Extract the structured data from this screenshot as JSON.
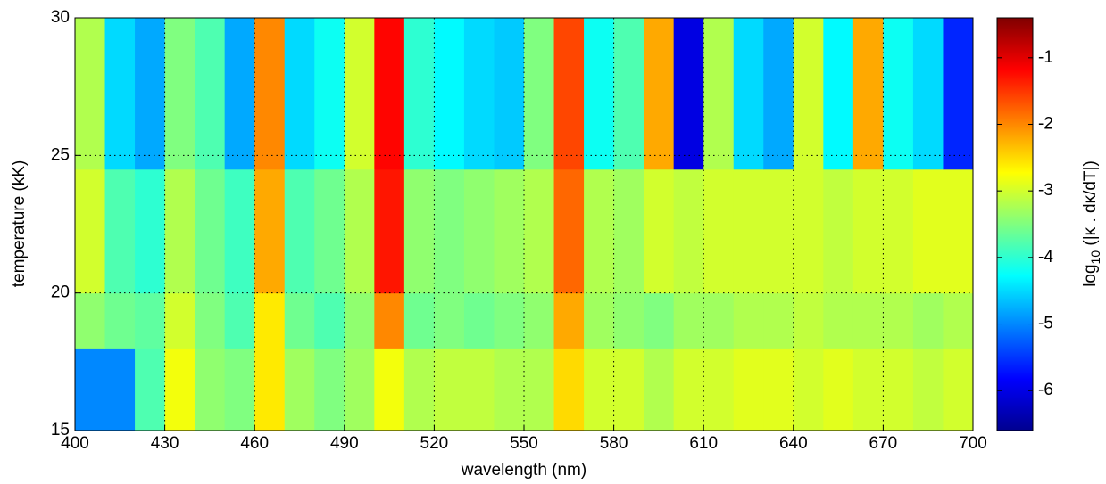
{
  "chart_data": {
    "type": "heatmap",
    "x_label": "wavelength (nm)",
    "y_label": "temperature (kK)",
    "colorbar_label": {
      "base": "log",
      "sub": "10",
      "rest": " (|κ . dκ/dT|)"
    },
    "colormap": "jet",
    "grid": true,
    "xlim": [
      400,
      700
    ],
    "ylim": [
      15,
      30
    ],
    "xticks": [
      400,
      430,
      460,
      490,
      520,
      550,
      580,
      610,
      640,
      670,
      700
    ],
    "yticks": [
      15,
      20,
      25,
      30
    ],
    "clim": [
      -6.6,
      -0.4
    ],
    "cticks": [
      -6,
      -5,
      -4,
      -3,
      -2,
      -1
    ],
    "xbins": [
      400,
      410,
      420,
      430,
      440,
      450,
      460,
      470,
      480,
      490,
      500,
      510,
      520,
      530,
      540,
      550,
      560,
      570,
      580,
      590,
      600,
      610,
      620,
      630,
      640,
      650,
      660,
      670,
      680,
      690,
      700
    ],
    "ybins": [
      15,
      18,
      20,
      24.5,
      30
    ],
    "z": [
      [
        -5.0,
        -5.0,
        -3.8,
        -2.8,
        -3.4,
        -3.5,
        -2.6,
        -3.3,
        -3.5,
        -3.3,
        -2.8,
        -3.2,
        -3.1,
        -3.1,
        -3.2,
        -3.2,
        -2.5,
        -3.0,
        -3.0,
        -3.2,
        -3.0,
        -3.0,
        -2.9,
        -2.9,
        -3.0,
        -2.9,
        -3.0,
        -3.0,
        -3.1,
        -3.0
      ],
      [
        -3.4,
        -3.6,
        -3.7,
        -3.0,
        -3.5,
        -3.8,
        -2.6,
        -3.6,
        -3.8,
        -3.4,
        -2.0,
        -3.6,
        -3.5,
        -3.6,
        -3.5,
        -3.4,
        -2.2,
        -3.3,
        -3.4,
        -3.5,
        -3.3,
        -3.3,
        -3.2,
        -3.2,
        -3.1,
        -3.2,
        -3.2,
        -3.2,
        -3.3,
        -3.2
      ],
      [
        -3.0,
        -3.8,
        -4.0,
        -3.2,
        -3.6,
        -3.9,
        -2.2,
        -3.8,
        -3.6,
        -3.2,
        -1.3,
        -3.4,
        -3.5,
        -3.4,
        -3.3,
        -3.2,
        -1.8,
        -3.2,
        -3.3,
        -3.0,
        -3.1,
        -3.0,
        -3.0,
        -3.0,
        -3.0,
        -3.1,
        -3.0,
        -3.0,
        -2.9,
        -2.9
      ],
      [
        -3.2,
        -4.5,
        -4.8,
        -3.5,
        -3.8,
        -4.8,
        -2.0,
        -4.5,
        -4.2,
        -3.0,
        -1.2,
        -4.0,
        -4.3,
        -4.5,
        -4.6,
        -3.5,
        -1.6,
        -4.2,
        -3.8,
        -2.2,
        -6.0,
        -3.2,
        -4.5,
        -4.8,
        -3.0,
        -4.3,
        -2.2,
        -4.2,
        -4.5,
        -5.6
      ]
    ]
  }
}
